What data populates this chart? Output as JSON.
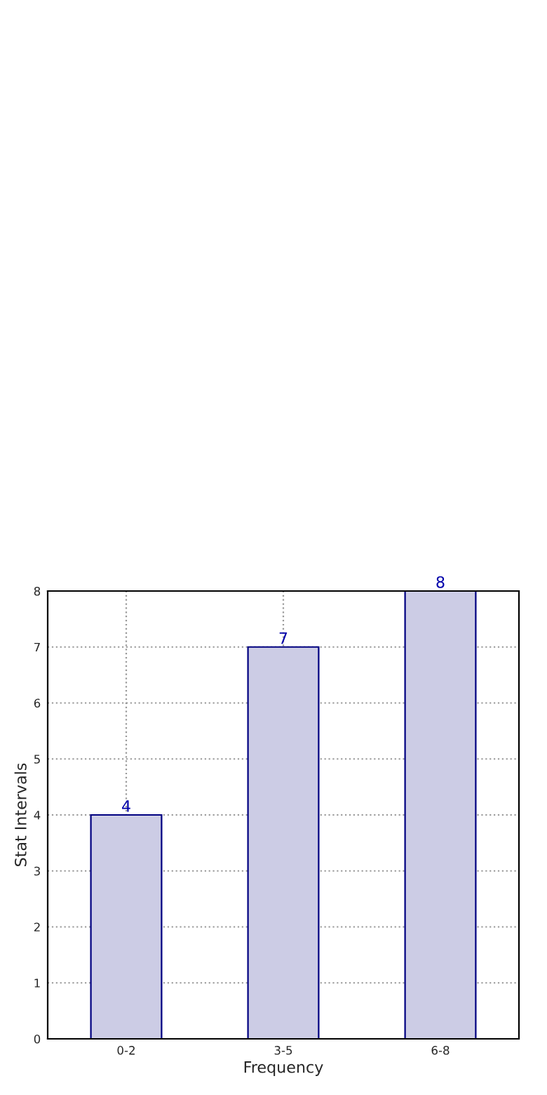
{
  "chart_data": {
    "type": "bar",
    "xlabel": "Frequency",
    "ylabel": "Stat Intervals",
    "categories": [
      "0-2",
      "3-5",
      "6-8"
    ],
    "values": [
      4,
      7,
      8
    ],
    "color": "#cccce5",
    "ylim": [
      0,
      8
    ],
    "yticks": [
      0,
      1,
      2,
      3,
      4,
      5,
      6,
      7,
      8
    ],
    "grid": true,
    "data_labels": true
  }
}
